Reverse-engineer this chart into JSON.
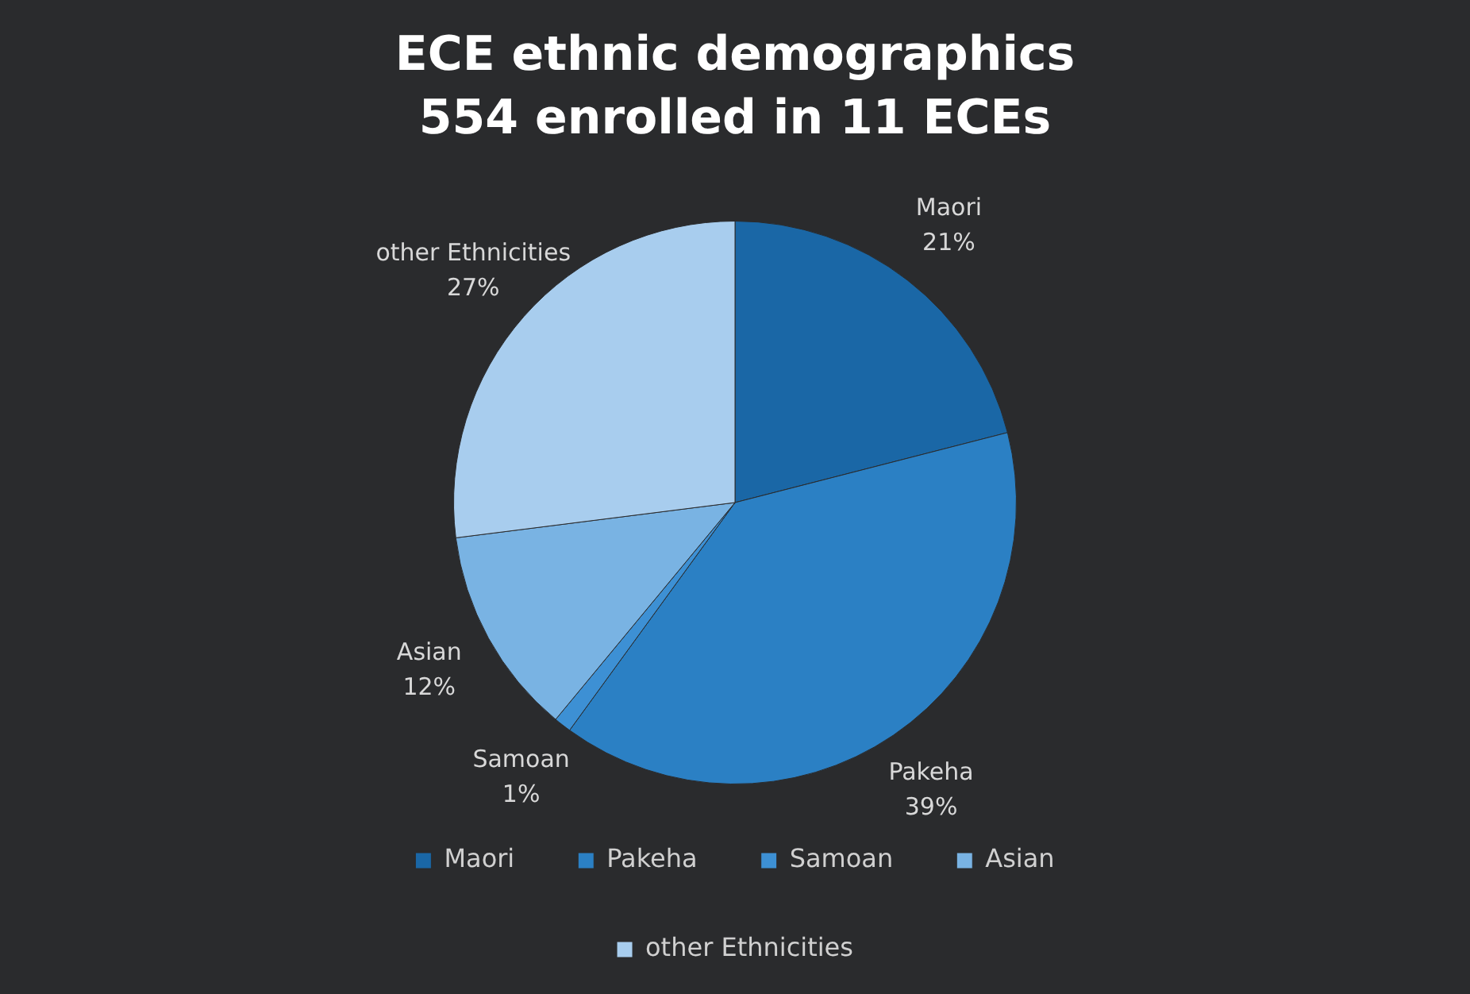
{
  "chart_data": {
    "type": "pie",
    "title": "ECE ethnic demographics",
    "subtitle": "554 enrolled in 11 ECEs",
    "categories": [
      "Maori",
      "Pakeha",
      "Samoan",
      "Asian",
      "other Ethnicities"
    ],
    "values": [
      21,
      39,
      1,
      12,
      27
    ],
    "colors": [
      "#1a67a6",
      "#2b80c4",
      "#3d90d4",
      "#79b3e3",
      "#a8cdee"
    ],
    "value_labels": [
      "21%",
      "39%",
      "1%",
      "12%",
      "27%"
    ],
    "legend": "bottom"
  }
}
